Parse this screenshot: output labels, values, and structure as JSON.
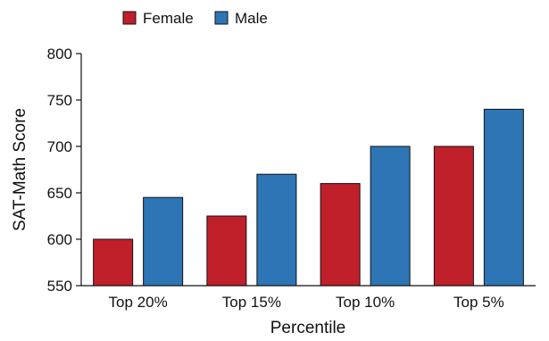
{
  "chart_data": {
    "type": "bar",
    "title": "",
    "xlabel": "Percentile",
    "ylabel": "SAT-Math Score",
    "categories": [
      "Top 20%",
      "Top 15%",
      "Top 10%",
      "Top 5%"
    ],
    "series": [
      {
        "name": "Female",
        "values": [
          600,
          625,
          660,
          700
        ],
        "color": "#c0202a"
      },
      {
        "name": "Male",
        "values": [
          645,
          670,
          700,
          740
        ],
        "color": "#2e75b6"
      }
    ],
    "ylim": [
      550,
      800
    ],
    "yticks": [
      550,
      600,
      650,
      700,
      750,
      800
    ],
    "grid": false,
    "legend_position": "top-left"
  }
}
